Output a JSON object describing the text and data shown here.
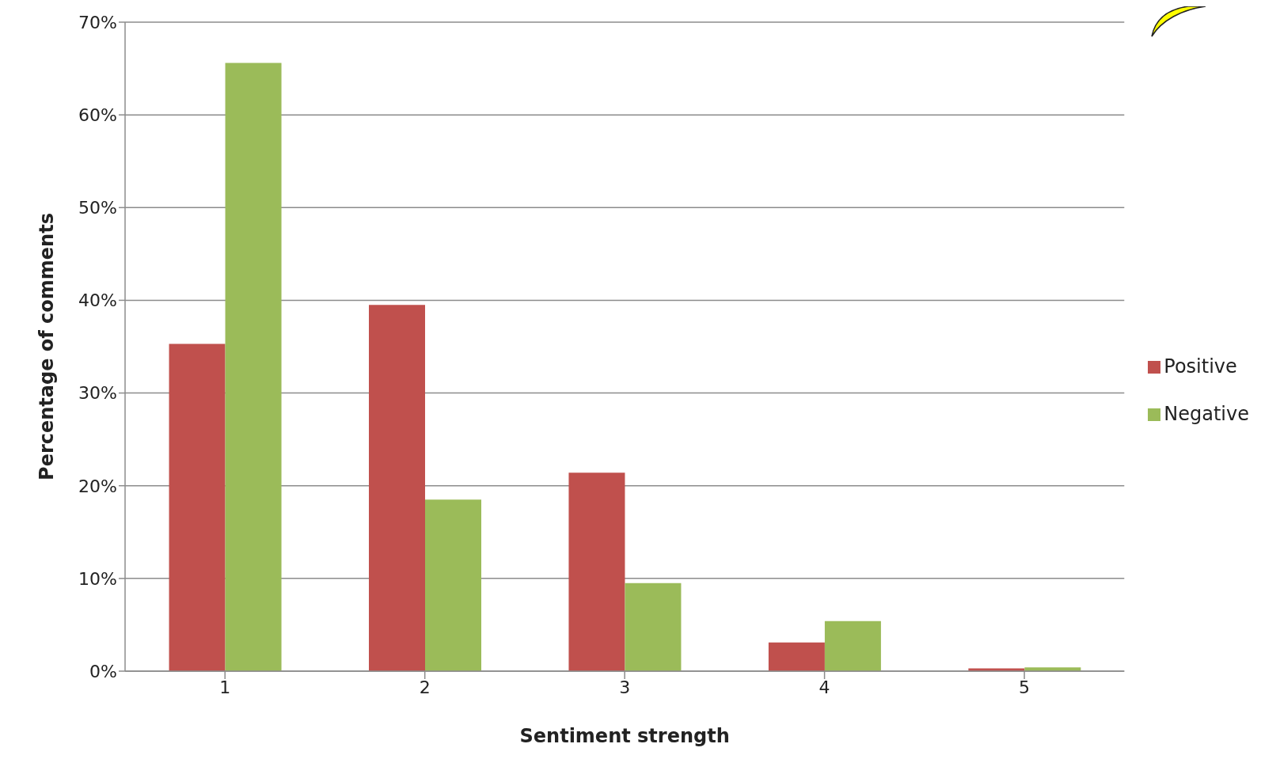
{
  "chart_data": {
    "type": "bar",
    "xlabel": "Sentiment strength",
    "ylabel": "Percentage of comments",
    "categories": [
      "1",
      "2",
      "3",
      "4",
      "5"
    ],
    "series": [
      {
        "name": "Positive",
        "color": "#c0504d",
        "values": [
          35.3,
          39.5,
          21.4,
          3.1,
          0.3
        ]
      },
      {
        "name": "Negative",
        "color": "#9bbb59",
        "values": [
          65.6,
          18.5,
          9.5,
          5.4,
          0.4
        ]
      }
    ],
    "ylim": [
      0,
      70
    ],
    "yticks": [
      {
        "value": 0,
        "label": "0%"
      },
      {
        "value": 10,
        "label": "10%"
      },
      {
        "value": 20,
        "label": "20%"
      },
      {
        "value": 30,
        "label": "30%"
      },
      {
        "value": 40,
        "label": "40%"
      },
      {
        "value": 50,
        "label": "50%"
      },
      {
        "value": 60,
        "label": "60%"
      },
      {
        "value": 70,
        "label": "70%"
      }
    ],
    "grid": "y",
    "legend": "right"
  }
}
